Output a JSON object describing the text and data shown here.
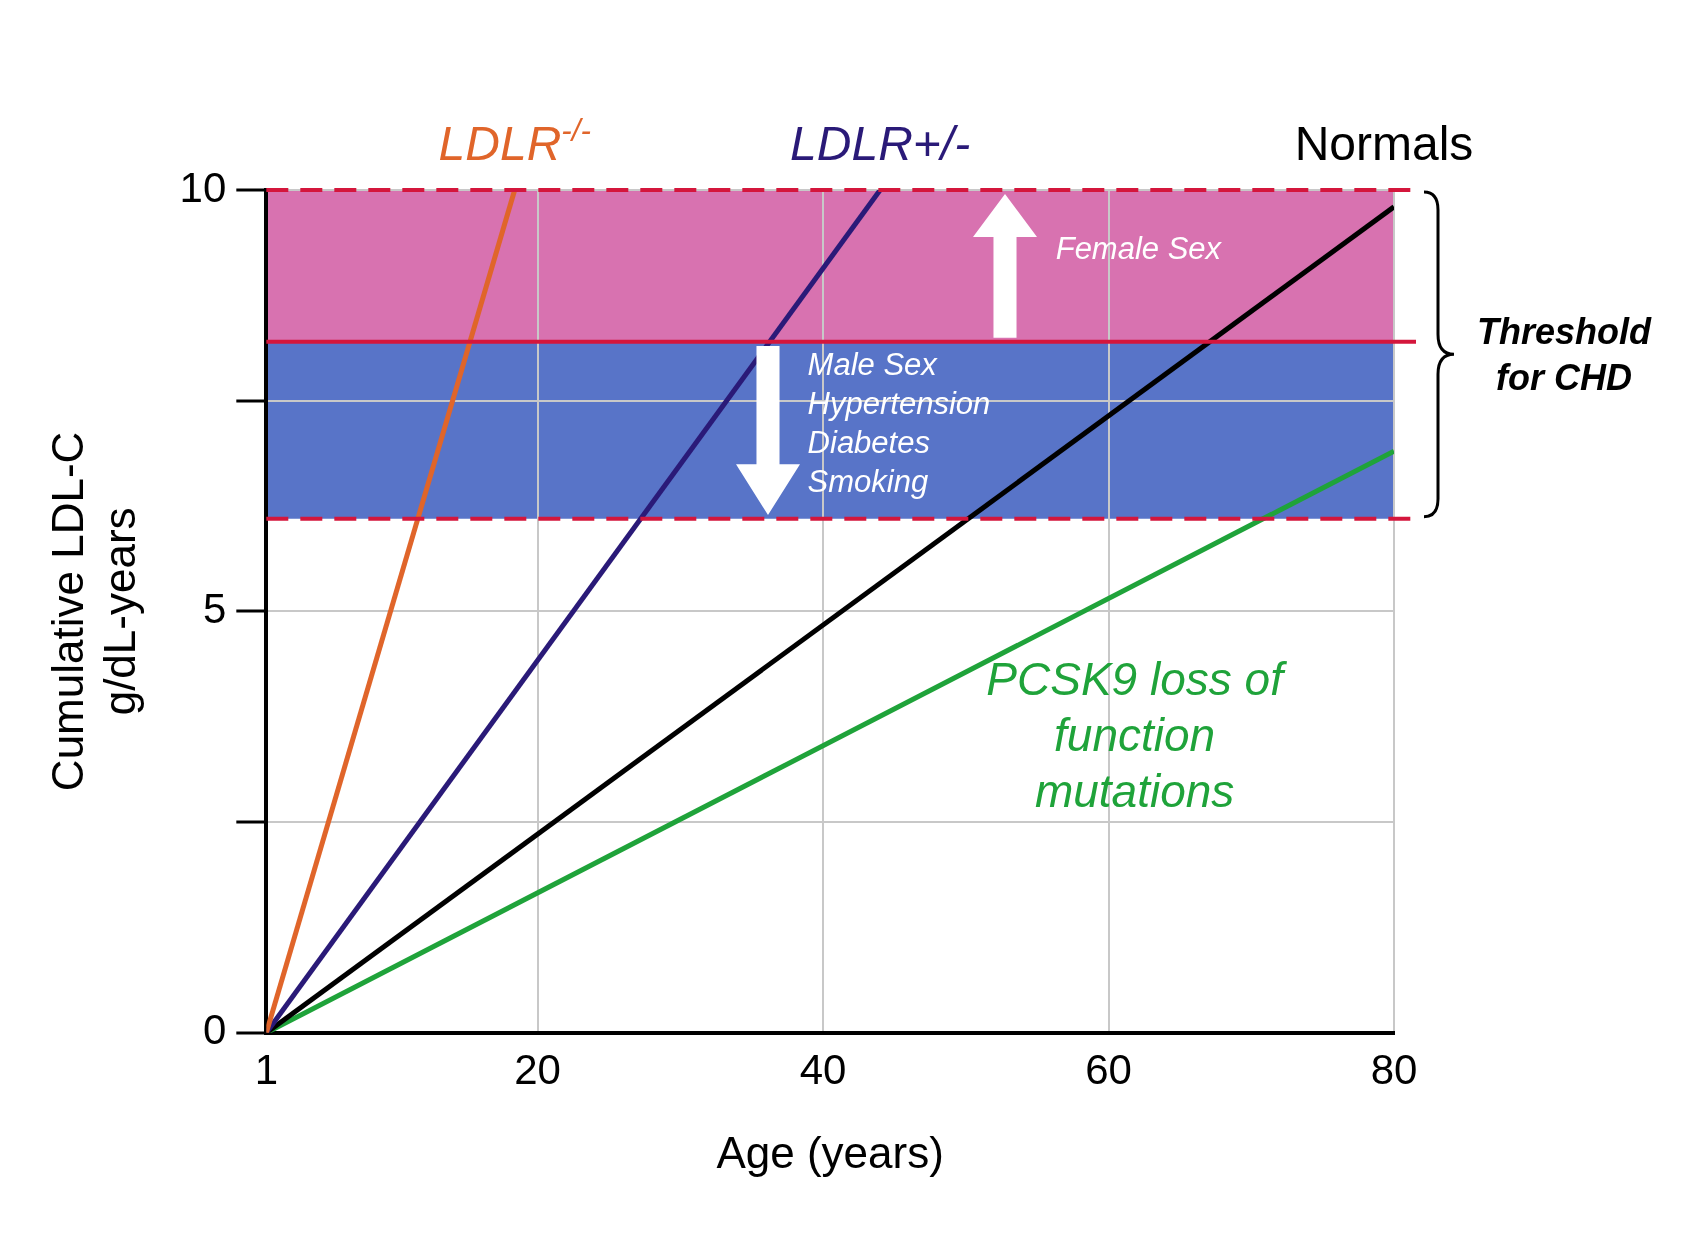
{
  "chart_data": {
    "type": "line",
    "xlabel": "Age (years)",
    "ylabel": "Cumulative LDL-C\ng/dL-years",
    "series": [
      {
        "name": "LDLR$^{-/-}$",
        "color": "#e0652a",
        "x": [
          1,
          18.4
        ],
        "values": [
          0,
          10
        ]
      },
      {
        "name": "LDLR+/-",
        "color": "#2a1a78",
        "x": [
          1,
          44
        ],
        "values": [
          0,
          10
        ]
      },
      {
        "name": "Normals",
        "color": "#000000",
        "x": [
          1,
          80
        ],
        "values": [
          0,
          9.8
        ]
      },
      {
        "name": "PCSK9 loss of function mutations",
        "color": "#1fa33a",
        "x": [
          1,
          80
        ],
        "values": [
          0,
          6.9
        ]
      }
    ],
    "xlim": [
      1,
      80
    ],
    "xticks": [
      1,
      20,
      40,
      60,
      80
    ],
    "ylim": [
      0,
      10
    ],
    "yticks": [
      0,
      {
        "value": 2.5,
        "label": null
      },
      5,
      {
        "value": 7.5,
        "label": null
      },
      10
    ],
    "grid": true,
    "legend": false,
    "marker": "none",
    "line_style": "solid",
    "bands": [
      {
        "axis": "y",
        "from": 8.2,
        "to": 10,
        "label": "Female Sex",
        "color": "#d872b0"
      },
      {
        "axis": "y",
        "from": 6.1,
        "to": 8.2,
        "label": "Male Sex\nHypertension\nDiabetes\nSmoking",
        "color": "#5874c8"
      }
    ],
    "ref_lines": [
      {
        "axis": "y",
        "value": 10,
        "color": "#d4163c",
        "line_style": "dashed"
      },
      {
        "axis": "y",
        "value": 8.2,
        "color": "#d4163c",
        "line_style": "solid"
      },
      {
        "axis": "y",
        "value": 6.1,
        "color": "#d4163c",
        "line_style": "dashed"
      }
    ],
    "annotations": [
      "Threshold for CHD"
    ]
  }
}
